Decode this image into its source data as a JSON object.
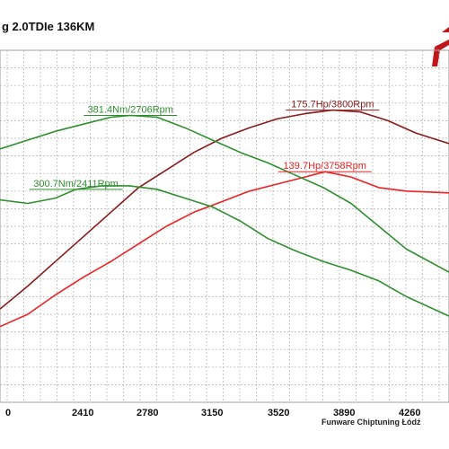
{
  "header": {
    "title": "g 2.0TDIe 136KM",
    "watermark": "Funware Chiptuning Łódź"
  },
  "colors": {
    "tuned_power": "#8b1a1a",
    "stock_power": "#ee2222",
    "torque": "#2f8f2f",
    "grid": "#b0b0b0"
  },
  "chart_data": {
    "type": "line",
    "title": "g 2.0TDIe 136KM",
    "xlabel": "",
    "ylabel": "",
    "x_ticks": [
      "0",
      "2410",
      "2780",
      "3150",
      "3520",
      "3890",
      "4260"
    ],
    "xlim": [
      2000,
      4430
    ],
    "ylim": [
      0,
      1
    ],
    "grid": true,
    "legend": "none",
    "series": [
      {
        "key": "tuned_power",
        "x": [
          2000,
          2150,
          2300,
          2450,
          2600,
          2750,
          2900,
          3050,
          3200,
          3350,
          3500,
          3650,
          3800,
          3950,
          4100,
          4250,
          4430
        ],
        "y": [
          0.265,
          0.33,
          0.4,
          0.47,
          0.54,
          0.61,
          0.66,
          0.71,
          0.75,
          0.78,
          0.805,
          0.82,
          0.83,
          0.825,
          0.8,
          0.765,
          0.735
        ]
      },
      {
        "key": "stock_power",
        "x": [
          2000,
          2150,
          2300,
          2450,
          2600,
          2750,
          2900,
          3050,
          3200,
          3350,
          3500,
          3650,
          3760,
          3900,
          4050,
          4200,
          4430
        ],
        "y": [
          0.215,
          0.25,
          0.305,
          0.355,
          0.4,
          0.45,
          0.5,
          0.54,
          0.57,
          0.6,
          0.62,
          0.64,
          0.655,
          0.64,
          0.61,
          0.6,
          0.595
        ]
      },
      {
        "key": "tuned_torque",
        "x": [
          2000,
          2150,
          2300,
          2450,
          2600,
          2706,
          2850,
          3000,
          3150,
          3300,
          3450,
          3600,
          3750,
          3900,
          4050,
          4200,
          4430
        ],
        "y": [
          0.72,
          0.745,
          0.77,
          0.79,
          0.81,
          0.815,
          0.81,
          0.78,
          0.745,
          0.71,
          0.68,
          0.645,
          0.61,
          0.565,
          0.5,
          0.435,
          0.37
        ]
      },
      {
        "key": "stock_torque",
        "x": [
          2000,
          2150,
          2300,
          2411,
          2550,
          2700,
          2850,
          3000,
          3150,
          3300,
          3450,
          3600,
          3750,
          3900,
          4050,
          4200,
          4430
        ],
        "y": [
          0.575,
          0.565,
          0.58,
          0.605,
          0.615,
          0.615,
          0.605,
          0.58,
          0.555,
          0.515,
          0.465,
          0.43,
          0.4,
          0.375,
          0.345,
          0.3,
          0.245
        ]
      }
    ],
    "annotations": [
      {
        "text": "381.4Nm/2706Rpm",
        "series": "tuned_torque",
        "x": 2706,
        "y": 0.815
      },
      {
        "text": "300.7Nm/2411Rpm",
        "series": "stock_torque",
        "x": 2411,
        "y": 0.605
      },
      {
        "text": "175.7Hp/3800Rpm",
        "series": "tuned_power",
        "x": 3800,
        "y": 0.83
      },
      {
        "text": "139.7Hp/3758Rpm",
        "series": "stock_power",
        "x": 3758,
        "y": 0.655
      }
    ]
  }
}
